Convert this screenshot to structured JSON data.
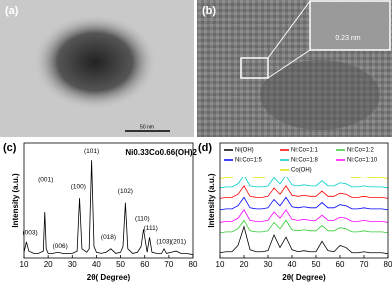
{
  "images": [
    {
      "label": "(a)",
      "scale_bar": "50 nm"
    },
    {
      "label": "(b)",
      "annotation": "0.23 nm"
    }
  ],
  "chart_data": [
    {
      "type": "line",
      "label": "(c)",
      "title": "Ni0.33Co0.66(OH)2",
      "x_label": "2θ( Degree)",
      "y_label": "Intensity (a.u.)",
      "x": [
        10,
        11,
        12,
        14,
        16,
        18,
        18.6,
        19.2,
        20,
        22,
        24,
        26,
        28,
        30,
        32,
        33,
        34,
        36,
        37,
        38,
        39,
        40,
        42,
        44,
        46,
        48,
        50,
        51,
        52,
        53,
        55,
        57,
        58.5,
        59.5,
        61,
        62,
        63,
        65,
        67,
        68,
        69,
        71,
        73,
        75,
        77,
        80
      ],
      "series": [
        {
          "color": "#000000",
          "values": [
            5,
            14,
            6,
            4,
            4,
            6,
            40,
            8,
            4,
            4,
            5,
            4,
            4,
            4,
            6,
            52,
            8,
            5,
            8,
            85,
            10,
            5,
            4,
            5,
            8,
            4,
            5,
            10,
            48,
            8,
            4,
            5,
            10,
            25,
            5,
            18,
            5,
            4,
            4,
            8,
            4,
            5,
            6,
            4,
            4,
            3
          ]
        }
      ],
      "annotations": [
        {
          "text": "(003)",
          "x": 12.5,
          "y": 22
        },
        {
          "text": "(001)",
          "x": 19,
          "y": 68
        },
        {
          "text": "(006)",
          "x": 25,
          "y": 10
        },
        {
          "text": "(100)",
          "x": 32.5,
          "y": 62
        },
        {
          "text": "(101)",
          "x": 38,
          "y": 93
        },
        {
          "text": "(018)",
          "x": 45,
          "y": 18
        },
        {
          "text": "(102)",
          "x": 52,
          "y": 58
        },
        {
          "text": "(110)",
          "x": 59,
          "y": 34
        },
        {
          "text": "(111)",
          "x": 62.5,
          "y": 26
        },
        {
          "text": "(103)",
          "x": 68,
          "y": 14
        },
        {
          "text": "(201)",
          "x": 74,
          "y": 14
        }
      ],
      "xlim": [
        10,
        80
      ],
      "xticks": [
        10,
        20,
        30,
        40,
        50,
        60,
        70,
        80
      ],
      "ylim": [
        0,
        100
      ],
      "grid": false
    },
    {
      "type": "line",
      "label": "(d)",
      "x_label": "2θ( Degree)",
      "y_label": "Intensity (a.u.)",
      "x": [
        10,
        12.5,
        15,
        17.5,
        20,
        22.5,
        25,
        27.5,
        30,
        32.5,
        35,
        37.5,
        40,
        42.5,
        45,
        47.5,
        50,
        52.5,
        55,
        57.5,
        60,
        62.5,
        65,
        67.5,
        70,
        72.5,
        75,
        77.5,
        80
      ],
      "series": [
        {
          "name": "Ni(OH)",
          "color": "#000000",
          "values": [
            5,
            6,
            6,
            12,
            30,
            8,
            6,
            6,
            7,
            22,
            10,
            20,
            8,
            6,
            7,
            6,
            6,
            16,
            7,
            6,
            12,
            10,
            5,
            5,
            6,
            5,
            5,
            5,
            4
          ]
        },
        {
          "name": "Ni:Co=1:1",
          "color": "#ff0000",
          "values": [
            57,
            58,
            58,
            61,
            69,
            59,
            58,
            58,
            59,
            67,
            61,
            69,
            60,
            59,
            60,
            59,
            59,
            64,
            59,
            59,
            62,
            61,
            58,
            58,
            59,
            58,
            58,
            58,
            57
          ]
        },
        {
          "name": "Ni:Co=1:2",
          "color": "#33cc33",
          "values": [
            24,
            25,
            25,
            28,
            36,
            26,
            25,
            25,
            26,
            34,
            28,
            36,
            27,
            26,
            27,
            26,
            26,
            31,
            26,
            26,
            29,
            28,
            25,
            25,
            26,
            25,
            25,
            25,
            24
          ]
        },
        {
          "name": "Ni:Co=1:5",
          "color": "#0000ff",
          "values": [
            46,
            47,
            47,
            50,
            58,
            48,
            47,
            47,
            48,
            56,
            50,
            58,
            49,
            48,
            49,
            48,
            48,
            53,
            48,
            48,
            51,
            50,
            47,
            47,
            48,
            47,
            47,
            47,
            46
          ]
        },
        {
          "name": "Ni:Co=1:8",
          "color": "#00cccc",
          "values": [
            67,
            68,
            68,
            71,
            79,
            69,
            68,
            68,
            69,
            77,
            71,
            79,
            70,
            69,
            70,
            69,
            69,
            74,
            69,
            69,
            72,
            71,
            68,
            68,
            69,
            68,
            68,
            68,
            67
          ]
        },
        {
          "name": "Ni:Co=1:10",
          "color": "#ff00ff",
          "values": [
            34,
            35,
            35,
            38,
            46,
            36,
            35,
            35,
            36,
            44,
            38,
            46,
            37,
            36,
            37,
            36,
            36,
            41,
            36,
            36,
            39,
            38,
            35,
            35,
            36,
            35,
            35,
            35,
            34
          ]
        },
        {
          "name": "Co(OH)",
          "color": "#e6e600",
          "values": [
            76,
            77,
            77,
            80,
            88,
            78,
            77,
            77,
            78,
            86,
            80,
            88,
            79,
            78,
            79,
            78,
            78,
            83,
            78,
            78,
            81,
            80,
            77,
            77,
            78,
            77,
            77,
            77,
            76
          ]
        }
      ],
      "xlim": [
        10,
        80
      ],
      "xticks": [
        10,
        20,
        30,
        40,
        50,
        60,
        70,
        80
      ],
      "ylim": [
        0,
        110
      ],
      "grid": false,
      "legend": "top"
    }
  ]
}
